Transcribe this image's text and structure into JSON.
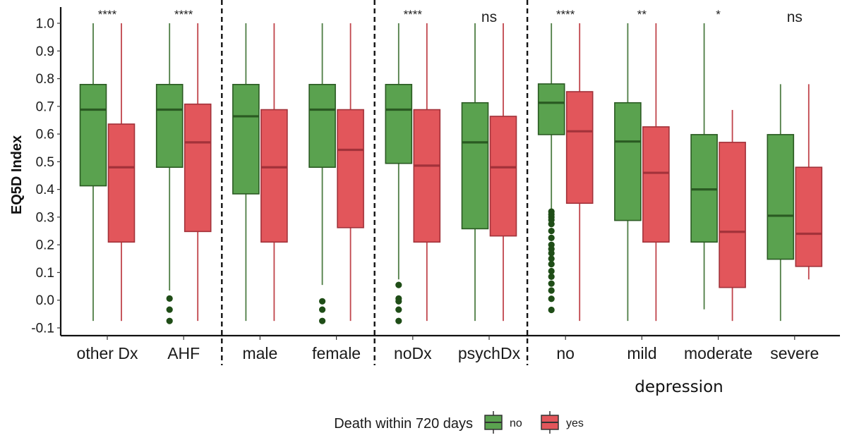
{
  "chart_data": {
    "type": "boxplot",
    "title": "",
    "ylabel": "EQ5D Index",
    "xlabel": "",
    "ylim": [
      -0.13,
      1.05
    ],
    "yticks": [
      -0.1,
      0.0,
      0.1,
      0.2,
      0.3,
      0.4,
      0.5,
      0.6,
      0.7,
      0.8,
      0.9,
      1.0
    ],
    "ytick_labels": [
      "-0.1",
      "0.0",
      "0.1",
      "0.2",
      "0.3",
      "0.4",
      "0.5",
      "0.6",
      "0.7",
      "0.8",
      "0.9",
      "1.0"
    ],
    "grid": false,
    "categories": [
      "other Dx",
      "AHF",
      "male",
      "female",
      "noDx",
      "psychDx",
      "no",
      "mild",
      "moderate",
      "severe"
    ],
    "separators_after": [
      1,
      3,
      5
    ],
    "group_annotation": {
      "label": "depression",
      "spans": [
        "no",
        "mild",
        "moderate",
        "severe"
      ]
    },
    "significance": [
      "****",
      "****",
      "",
      "",
      "****",
      "ns",
      "****",
      "**",
      "*",
      "ns"
    ],
    "legend": {
      "title": "Death within 720 days",
      "placement": "bottom",
      "entries": [
        {
          "name": "no",
          "color": "#5aa24f",
          "edge": "#2a5a22"
        },
        {
          "name": "yes",
          "color": "#e2565b",
          "edge": "#a2323a"
        }
      ]
    },
    "series": [
      {
        "name": "no",
        "boxes": [
          {
            "whisker_low": -0.075,
            "q1": 0.413,
            "median": 0.688,
            "q3": 0.779,
            "whisker_high": 1.0,
            "outliers": []
          },
          {
            "whisker_low": 0.035,
            "q1": 0.48,
            "median": 0.688,
            "q3": 0.779,
            "whisker_high": 1.0,
            "outliers": [
              0.006,
              -0.034,
              -0.075
            ]
          },
          {
            "whisker_low": -0.075,
            "q1": 0.384,
            "median": 0.664,
            "q3": 0.779,
            "whisker_high": 1.0,
            "outliers": []
          },
          {
            "whisker_low": 0.055,
            "q1": 0.48,
            "median": 0.688,
            "q3": 0.779,
            "whisker_high": 1.0,
            "outliers": [
              -0.004,
              -0.034,
              -0.075
            ]
          },
          {
            "whisker_low": 0.075,
            "q1": 0.494,
            "median": 0.688,
            "q3": 0.779,
            "whisker_high": 1.0,
            "outliers": [
              0.055,
              0.006,
              -0.004,
              -0.034,
              -0.075
            ]
          },
          {
            "whisker_low": -0.075,
            "q1": 0.258,
            "median": 0.57,
            "q3": 0.713,
            "whisker_high": 1.0,
            "outliers": []
          },
          {
            "whisker_low": 0.33,
            "q1": 0.598,
            "median": 0.713,
            "q3": 0.781,
            "whisker_high": 1.0,
            "outliers": [
              0.32,
              0.31,
              0.3,
              0.29,
              0.275,
              0.25,
              0.225,
              0.2,
              0.185,
              0.17,
              0.15,
              0.13,
              0.105,
              0.085,
              0.06,
              0.035,
              0.005,
              -0.035
            ]
          },
          {
            "whisker_low": -0.075,
            "q1": 0.288,
            "median": 0.573,
            "q3": 0.713,
            "whisker_high": 1.0,
            "outliers": []
          },
          {
            "whisker_low": -0.033,
            "q1": 0.21,
            "median": 0.4,
            "q3": 0.598,
            "whisker_high": 1.0,
            "outliers": []
          },
          {
            "whisker_low": -0.075,
            "q1": 0.148,
            "median": 0.305,
            "q3": 0.598,
            "whisker_high": 0.78,
            "outliers": []
          }
        ]
      },
      {
        "name": "yes",
        "boxes": [
          {
            "whisker_low": -0.075,
            "q1": 0.21,
            "median": 0.48,
            "q3": 0.636,
            "whisker_high": 1.0,
            "outliers": []
          },
          {
            "whisker_low": -0.075,
            "q1": 0.248,
            "median": 0.57,
            "q3": 0.708,
            "whisker_high": 1.0,
            "outliers": []
          },
          {
            "whisker_low": -0.075,
            "q1": 0.21,
            "median": 0.48,
            "q3": 0.688,
            "whisker_high": 1.0,
            "outliers": []
          },
          {
            "whisker_low": -0.075,
            "q1": 0.262,
            "median": 0.543,
            "q3": 0.688,
            "whisker_high": 1.0,
            "outliers": []
          },
          {
            "whisker_low": -0.075,
            "q1": 0.21,
            "median": 0.486,
            "q3": 0.688,
            "whisker_high": 1.0,
            "outliers": []
          },
          {
            "whisker_low": -0.075,
            "q1": 0.232,
            "median": 0.48,
            "q3": 0.664,
            "whisker_high": 1.0,
            "outliers": []
          },
          {
            "whisker_low": -0.075,
            "q1": 0.35,
            "median": 0.61,
            "q3": 0.753,
            "whisker_high": 1.0,
            "outliers": []
          },
          {
            "whisker_low": -0.075,
            "q1": 0.21,
            "median": 0.46,
            "q3": 0.626,
            "whisker_high": 1.0,
            "outliers": []
          },
          {
            "whisker_low": -0.075,
            "q1": 0.046,
            "median": 0.247,
            "q3": 0.57,
            "whisker_high": 0.687,
            "outliers": []
          },
          {
            "whisker_low": 0.075,
            "q1": 0.122,
            "median": 0.24,
            "q3": 0.48,
            "whisker_high": 0.78,
            "outliers": []
          }
        ]
      }
    ]
  }
}
